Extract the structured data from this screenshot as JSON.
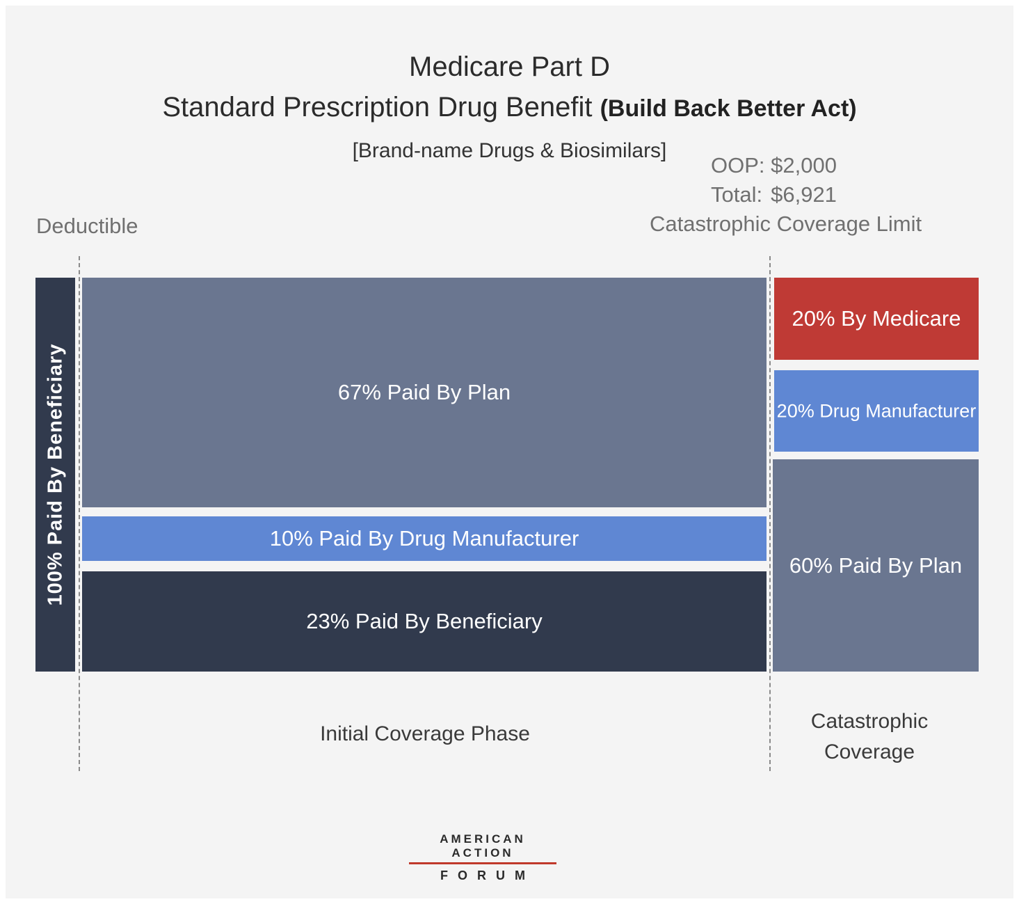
{
  "chart_data": {
    "type": "bar",
    "title_line1": "Medicare Part D",
    "title_line2": "Standard Prescription Drug Benefit",
    "title_parenthetical": "(Build Back Better Act)",
    "subtitle": "[Brand-name Drugs & Biosimilars]",
    "markers": {
      "deductible": "Deductible",
      "oop": "OOP: $2,000",
      "total_label": "Total:",
      "total_value": "$6,921",
      "catastrophic_limit": "Catastrophic Coverage Limit"
    },
    "phases": [
      {
        "name": "Deductible",
        "segments": [
          {
            "label": "100% Paid By Beneficiary",
            "payer": "Beneficiary",
            "value": 100,
            "color": "#313a4d"
          }
        ]
      },
      {
        "name": "Initial Coverage Phase",
        "segments": [
          {
            "label": "67%  Paid By Plan",
            "payer": "Plan",
            "value": 67,
            "color": "#6a7690"
          },
          {
            "label": "10% Paid By Drug Manufacturer",
            "payer": "Drug Manufacturer",
            "value": 10,
            "color": "#5f87d3"
          },
          {
            "label": "23%  Paid By Beneficiary",
            "payer": "Beneficiary",
            "value": 23,
            "color": "#313a4d"
          }
        ]
      },
      {
        "name": "Catastrophic Coverage",
        "name_line1": "Catastrophic",
        "name_line2": "Coverage",
        "segments": [
          {
            "label": "20% By Medicare",
            "payer": "Medicare",
            "value": 20,
            "color": "#bf3a35"
          },
          {
            "label": "20% Drug Manufacturer",
            "payer": "Drug Manufacturer",
            "value": 20,
            "color": "#5f87d3"
          },
          {
            "label": "60% Paid By Plan",
            "payer": "Plan",
            "value": 60,
            "color": "#6a7690"
          }
        ]
      }
    ]
  },
  "logo": {
    "line1": "AMERICAN ACTION",
    "line2": "FORUM"
  }
}
